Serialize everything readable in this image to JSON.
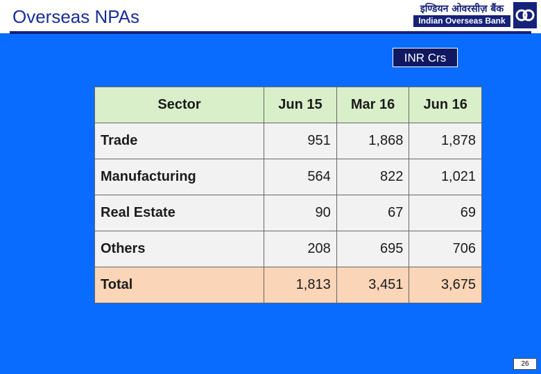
{
  "slide": {
    "title": "Overseas NPAs",
    "unit_label": "INR Crs",
    "page_number": "26"
  },
  "logo": {
    "hindi_text": "इण्डियन ओवरसीज़ बैंक",
    "english_text": "Indian Overseas Bank",
    "mark_icon": "iob-emblem-icon"
  },
  "table": {
    "headers": [
      "Sector",
      "Jun 15",
      "Mar 16",
      "Jun 16"
    ],
    "rows": [
      {
        "sector": "Trade",
        "values": [
          "951",
          "1,868",
          "1,878"
        ]
      },
      {
        "sector": "Manufacturing",
        "values": [
          "564",
          "822",
          "1,021"
        ]
      },
      {
        "sector": "Real Estate",
        "values": [
          "90",
          "67",
          "69"
        ]
      },
      {
        "sector": "Others",
        "values": [
          "208",
          "695",
          "706"
        ]
      },
      {
        "sector": "Total",
        "values": [
          "1,813",
          "3,451",
          "3,675"
        ]
      }
    ]
  },
  "colors": {
    "background": "#0a6cff",
    "title": "#1a2e9a",
    "header_row": "#d9efc9",
    "body_row": "#f2f2f2",
    "total_row": "#fbd5b8",
    "brand_navy": "#16217a"
  }
}
